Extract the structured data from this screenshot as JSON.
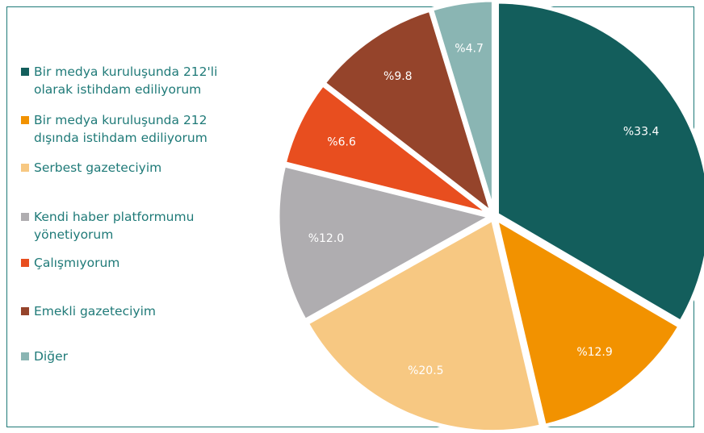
{
  "chart_data": {
    "type": "pie",
    "categories": [
      "Bir medya kuruluşunda 212'li olarak istihdam ediliyorum",
      "Bir medya kuruluşunda 212 dışında istihdam ediliyorum",
      "Serbest gazeteciyim",
      "Kendi haber platformumu yönetiyorum",
      "Çalışmıyorum",
      "Emekli gazeteciyim",
      "Diğer"
    ],
    "values": [
      33.4,
      12.9,
      20.5,
      12.0,
      6.6,
      9.8,
      4.7
    ],
    "value_labels": [
      "%33.4",
      "%12.9",
      "%20.5",
      "%12.0",
      "%6.6",
      "%9.8",
      "%4.7"
    ],
    "colors": [
      "#135e5c",
      "#f29200",
      "#f7c882",
      "#afadb0",
      "#e84e1f",
      "#95442b",
      "#8ab5b3"
    ],
    "legend": "left"
  }
}
